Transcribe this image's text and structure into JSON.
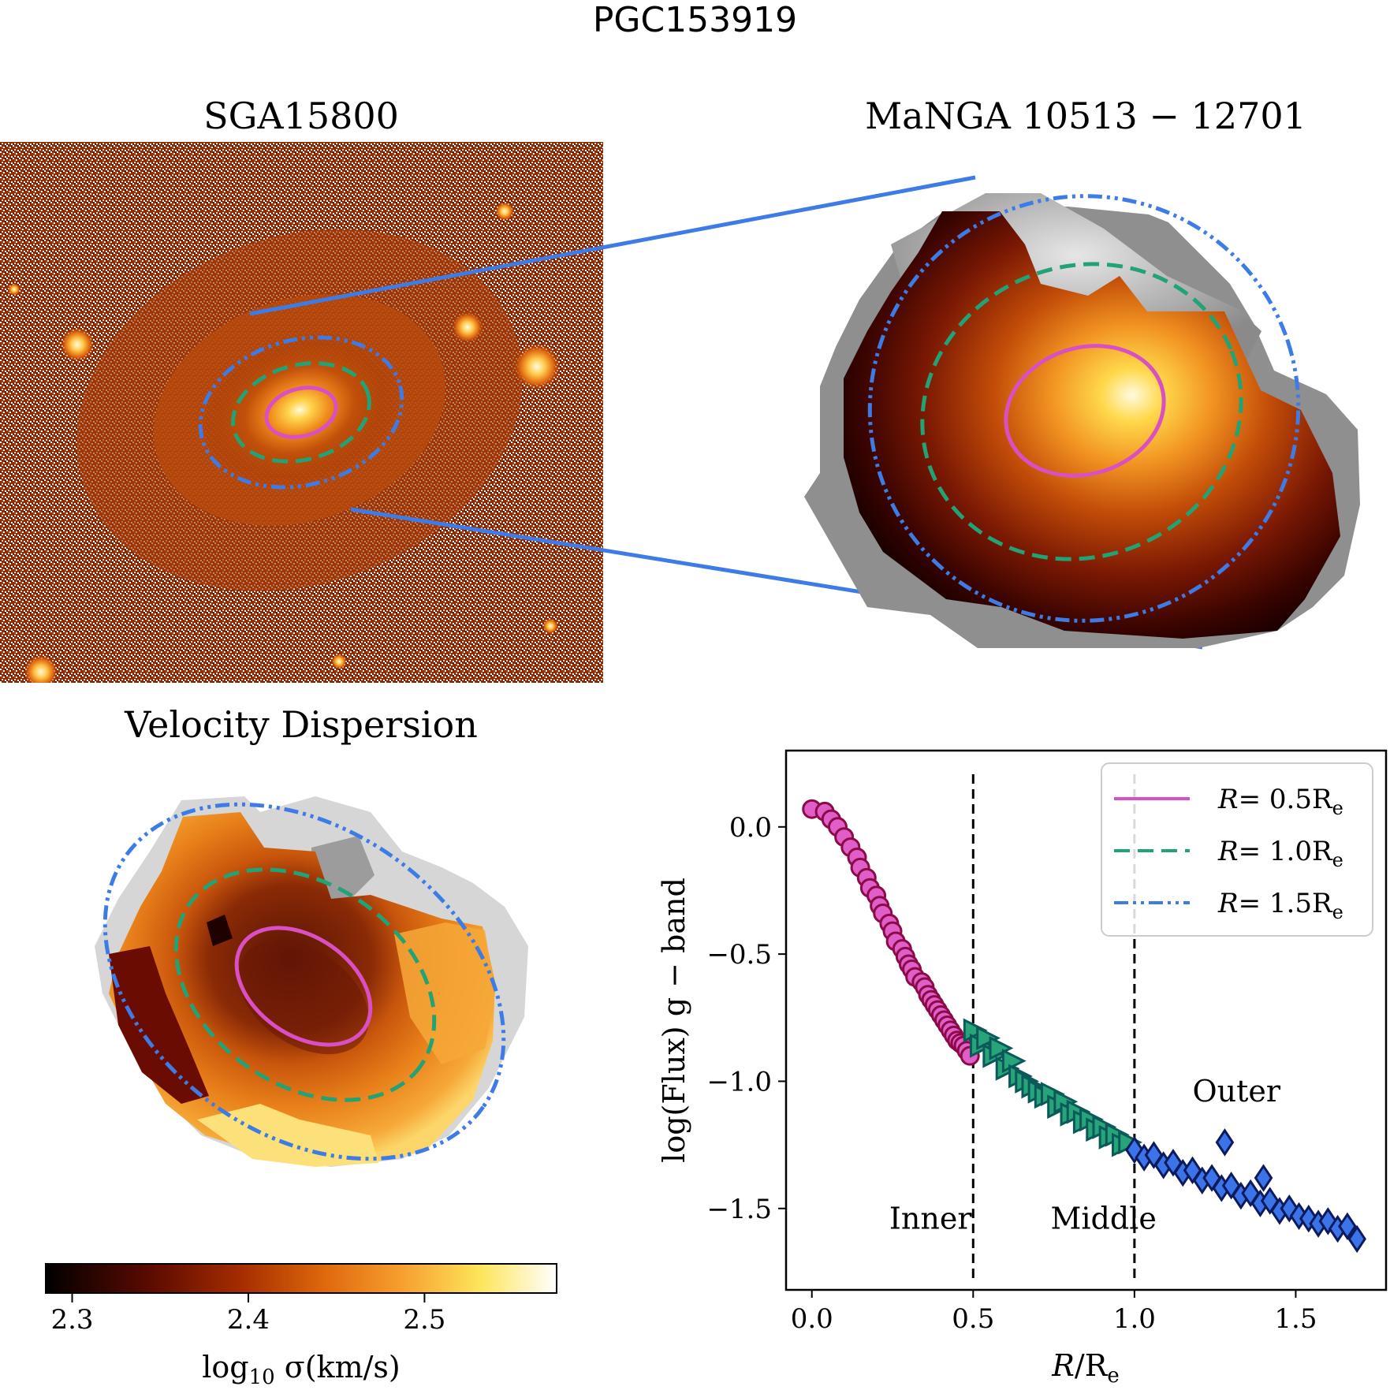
{
  "figure": {
    "title": "PGC153919",
    "panel_sga_title": "SGA15800",
    "panel_manga_title": "MaNGA 10513 − 12701",
    "panel_vd_title": "Velocity Dispersion",
    "colorbar": {
      "ticks": [
        "2.3",
        "2.4",
        "2.5"
      ],
      "tick_values": [
        2.3,
        2.4,
        2.5
      ],
      "range": [
        2.285,
        2.575
      ],
      "label": "log10 σ(km/s)",
      "label_parts": {
        "pre": "log",
        "sub": "10",
        "post": " σ(km/s)"
      }
    },
    "apertures": {
      "r05": {
        "label": "R= 0.5Re",
        "color": "#d94fc4",
        "style": "solid"
      },
      "r10": {
        "label": "R= 1.0Re",
        "color": "#22a376",
        "style": "dashed"
      },
      "r15": {
        "label": "R= 1.5Re",
        "color": "#3d7ce6",
        "style": "dashdotdot"
      }
    }
  },
  "chart_data": {
    "type": "scatter",
    "title": "",
    "xlabel": "R/Re",
    "ylabel": "log(Flux) g − band",
    "xlim": [
      -0.08,
      1.78
    ],
    "ylim": [
      -1.82,
      0.3
    ],
    "xticks": [
      0.0,
      0.5,
      1.0,
      1.5
    ],
    "xtick_labels": [
      "0.0",
      "0.5",
      "1.0",
      "1.5"
    ],
    "yticks": [
      0.0,
      -0.5,
      -1.0,
      -1.5
    ],
    "ytick_labels": [
      "0.0",
      "−0.5",
      "−1.0",
      "−1.5"
    ],
    "vlines": [
      0.5,
      1.0
    ],
    "region_labels": [
      {
        "text": "Inner",
        "x": 0.24,
        "y": -1.58
      },
      {
        "text": "Middle",
        "x": 0.74,
        "y": -1.58
      },
      {
        "text": "Outer",
        "x": 1.18,
        "y": -1.08
      }
    ],
    "legend": [
      {
        "label": "R= 0.5Re",
        "color": "#d94fc4",
        "style": "solid"
      },
      {
        "label": "R= 1.0Re",
        "color": "#22a376",
        "style": "dashed"
      },
      {
        "label": "R= 1.5Re",
        "color": "#3d7ce6",
        "style": "dashdotdot"
      }
    ],
    "legend_position": "upper right",
    "series": [
      {
        "name": "Inner",
        "marker": "circle",
        "face": "#e05ec8",
        "edge": "#8c0a48",
        "x": [
          0.0,
          0.04,
          0.06,
          0.08,
          0.1,
          0.12,
          0.14,
          0.15,
          0.17,
          0.18,
          0.2,
          0.21,
          0.22,
          0.24,
          0.25,
          0.26,
          0.28,
          0.29,
          0.3,
          0.31,
          0.32,
          0.34,
          0.35,
          0.36,
          0.37,
          0.38,
          0.39,
          0.4,
          0.41,
          0.42,
          0.43,
          0.44,
          0.45,
          0.46,
          0.47,
          0.48,
          0.49
        ],
        "y": [
          0.07,
          0.06,
          0.03,
          0.0,
          -0.04,
          -0.08,
          -0.12,
          -0.16,
          -0.2,
          -0.24,
          -0.27,
          -0.31,
          -0.34,
          -0.38,
          -0.41,
          -0.45,
          -0.48,
          -0.51,
          -0.54,
          -0.56,
          -0.59,
          -0.61,
          -0.63,
          -0.66,
          -0.68,
          -0.7,
          -0.72,
          -0.74,
          -0.76,
          -0.78,
          -0.8,
          -0.82,
          -0.84,
          -0.85,
          -0.86,
          -0.88,
          -0.9
        ]
      },
      {
        "name": "Middle",
        "marker": "triangle-right",
        "face": "#28a47a",
        "edge": "#0b5a5a",
        "x": [
          0.5,
          0.52,
          0.54,
          0.56,
          0.58,
          0.6,
          0.62,
          0.64,
          0.66,
          0.68,
          0.7,
          0.72,
          0.74,
          0.76,
          0.78,
          0.8,
          0.82,
          0.84,
          0.86,
          0.88,
          0.9,
          0.92,
          0.94,
          0.96,
          0.98
        ],
        "y": [
          -0.8,
          -0.86,
          -0.83,
          -0.9,
          -0.87,
          -0.95,
          -0.92,
          -0.98,
          -1.0,
          -1.02,
          -1.04,
          -1.06,
          -1.05,
          -1.1,
          -1.08,
          -1.13,
          -1.12,
          -1.16,
          -1.15,
          -1.19,
          -1.18,
          -1.22,
          -1.21,
          -1.25,
          -1.24
        ]
      },
      {
        "name": "Outer",
        "marker": "diamond",
        "face": "#3b74e8",
        "edge": "#0d1a5c",
        "x": [
          1.0,
          1.03,
          1.06,
          1.09,
          1.12,
          1.15,
          1.18,
          1.21,
          1.24,
          1.27,
          1.28,
          1.3,
          1.33,
          1.36,
          1.39,
          1.4,
          1.42,
          1.45,
          1.48,
          1.51,
          1.54,
          1.57,
          1.6,
          1.63,
          1.66,
          1.69
        ],
        "y": [
          -1.27,
          -1.3,
          -1.29,
          -1.33,
          -1.32,
          -1.36,
          -1.35,
          -1.39,
          -1.38,
          -1.42,
          -1.24,
          -1.41,
          -1.45,
          -1.44,
          -1.48,
          -1.38,
          -1.47,
          -1.51,
          -1.5,
          -1.53,
          -1.54,
          -1.56,
          -1.55,
          -1.58,
          -1.57,
          -1.62
        ]
      }
    ]
  }
}
